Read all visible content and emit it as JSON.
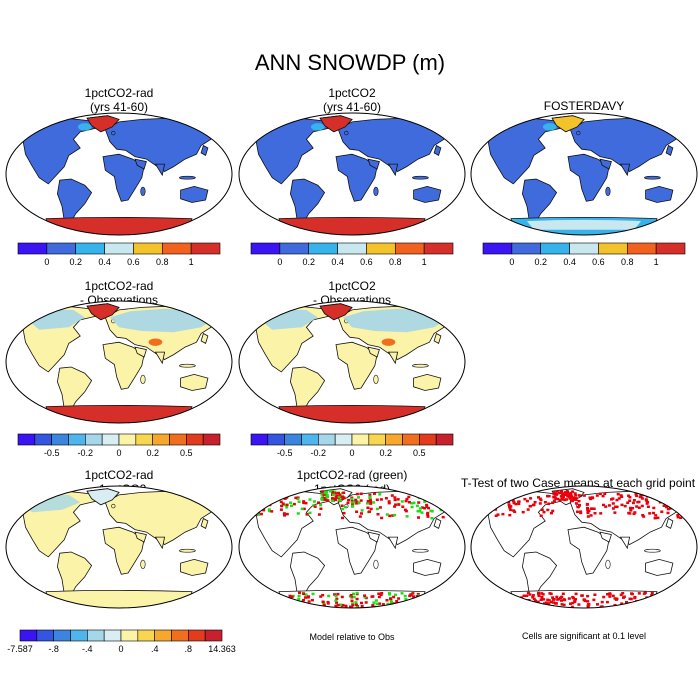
{
  "title": "ANN SNOWDP (m)",
  "colors": {
    "ocean": "#ffffff",
    "outline": "#000000",
    "coast": "#111111",
    "mean_scale": [
      "#3a14f2",
      "#3f6bdc",
      "#37b3ec",
      "#c9e7ee",
      "#f3c32b",
      "#f0621e",
      "#d62f2a"
    ],
    "diff_scale": [
      "#3a14f2",
      "#3355e0",
      "#3c85df",
      "#4eb6ec",
      "#a5d6ea",
      "#d8eef3",
      "#fbf3a7",
      "#f8d64f",
      "#f6a72c",
      "#f06f1f",
      "#e23b1e",
      "#c8212e"
    ],
    "land_mean": "#3f6bdc",
    "land_diff": "#fbf3a7",
    "antarctica_hot": "#d62f2a",
    "sig_red": "#e8000b",
    "sig_green": "#1ddf16"
  },
  "panels": [
    {
      "id": "p1",
      "title_lines": [
        "1pctCO2-rad",
        "(yrs 41-60)"
      ],
      "kind": "mean",
      "antarctica": "hot"
    },
    {
      "id": "p2",
      "title_lines": [
        "1pctCO2",
        "(yrs 41-60)"
      ],
      "kind": "mean",
      "antarctica": "hot"
    },
    {
      "id": "p3",
      "title_lines": [
        "FOSTERDAVY"
      ],
      "kind": "obs",
      "antarctica": "mixed"
    },
    {
      "id": "p4",
      "title_lines": [
        "1pctCO2-rad",
        "- Observations"
      ],
      "kind": "diff",
      "antarctica": "hot"
    },
    {
      "id": "p5",
      "title_lines": [
        "1pctCO2",
        "- Observations"
      ],
      "kind": "diff",
      "antarctica": "hot"
    },
    {
      "id": "p7",
      "title_lines": [
        "1pctCO2-rad",
        "- 1pctCO2"
      ],
      "kind": "diff2",
      "antarctica": "cool"
    },
    {
      "id": "p8",
      "title_lines": [
        "1pctCO2-rad (green)",
        "1pctCO2 (red)"
      ],
      "kind": "model_sig",
      "antarctica": "sig"
    },
    {
      "id": "p9",
      "title_lines": [
        "T-Test of two Case means at each grid point"
      ],
      "kind": "ttest",
      "antarctica": "sig"
    }
  ],
  "colorbars": {
    "mean": {
      "labels": [
        "0",
        "0.2",
        "0.4",
        "0.6",
        "0.8",
        "1"
      ]
    },
    "diff": {
      "labels": [
        "-0.5",
        "-0.2",
        "0",
        "0.2",
        "0.5"
      ]
    },
    "diff2": {
      "labels": [
        "-7.587",
        "-.8",
        "-.4",
        "0",
        ".4",
        ".8",
        "14.363"
      ]
    }
  },
  "captions": {
    "p8": "Model relative to Obs",
    "p9": "Cells are significant at 0.1 level"
  }
}
